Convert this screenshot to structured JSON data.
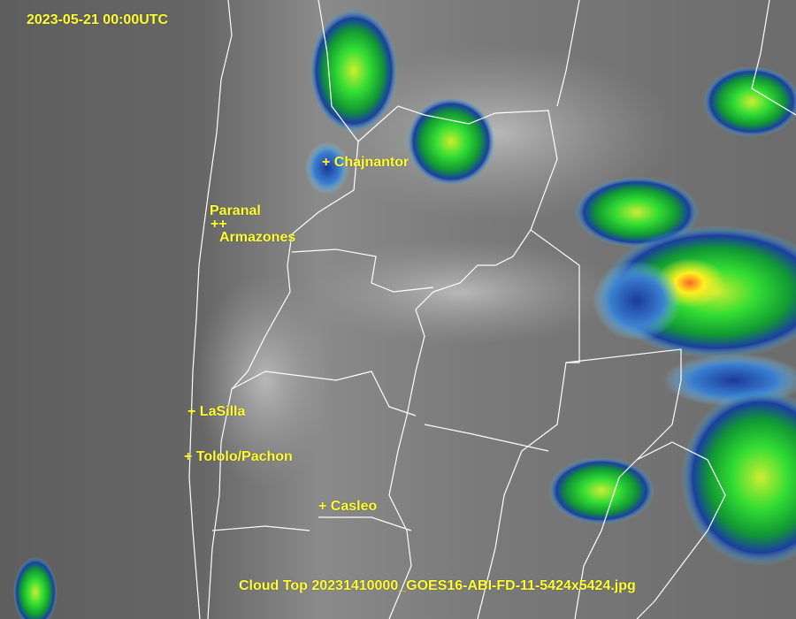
{
  "timestamp": "2023-05-21 00:00UTC",
  "caption": "Cloud Top 20231410000_GOES16-ABI-FD-11-5424x5424.jpg",
  "sites": {
    "chajnantor": "+ Chajnantor",
    "paranal": "Paranal",
    "paranal_armazones_marks": "++",
    "armazones": "Armazones",
    "lasilla": "+ LaSilla",
    "tololo": "+ Tololo/Pachon",
    "casleo": "+ Casleo"
  },
  "colors": {
    "label": "#ffff33",
    "border": "#ffffff",
    "cloud_cold": "#00cc33",
    "cloud_coldest": "#ff6600",
    "cloud_mid": "#1a3fa0"
  }
}
